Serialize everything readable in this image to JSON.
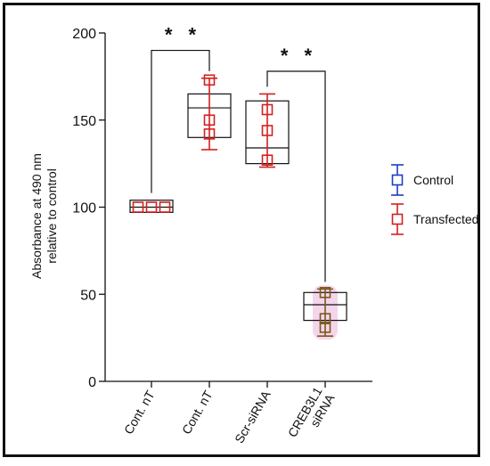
{
  "chart_data": {
    "type": "box",
    "ylabel_lines": [
      "Absorbance at 490 nm",
      "relative to control"
    ],
    "ylim": [
      0,
      200
    ],
    "yticks": [
      0,
      50,
      100,
      150,
      200
    ],
    "categories": [
      {
        "lines": [
          "Cont. nT"
        ]
      },
      {
        "lines": [
          "Cont. nT"
        ]
      },
      {
        "lines": [
          "Scr-siRNA"
        ]
      },
      {
        "lines": [
          "CREB3L1",
          "siRNA"
        ]
      }
    ],
    "boxes": [
      {
        "q1": 97,
        "median": 100,
        "q3": 104,
        "whisker_low": 97,
        "whisker_high": 104,
        "points": [
          100,
          100,
          100
        ],
        "series": "Transfected",
        "highlight": false,
        "show_whiskers": false
      },
      {
        "q1": 140,
        "median": 157,
        "q3": 165,
        "whisker_low": 133,
        "whisker_high": 174,
        "points": [
          173,
          150,
          142
        ],
        "series": "Transfected",
        "highlight": false,
        "show_whiskers": true
      },
      {
        "q1": 125,
        "median": 134,
        "q3": 161,
        "whisker_low": 123,
        "whisker_high": 165,
        "points": [
          156,
          144,
          127
        ],
        "series": "Transfected",
        "highlight": false,
        "show_whiskers": true
      },
      {
        "q1": 35,
        "median": 44,
        "q3": 51,
        "whisker_low": 26,
        "whisker_high": 53,
        "points": [
          51,
          36,
          31
        ],
        "series": "Transfected",
        "highlight": true,
        "show_whiskers": true
      }
    ],
    "significance": [
      {
        "from": 0,
        "to": 1,
        "label": "* *",
        "y": 190
      },
      {
        "from": 2,
        "to": 3,
        "label": "* *",
        "y": 178
      }
    ],
    "legend": {
      "position": "right",
      "entries": [
        {
          "name": "Control",
          "color": "#1f3fbf"
        },
        {
          "name": "Transfected",
          "color": "#d42020"
        }
      ]
    },
    "colors": {
      "transfected": "#d42020",
      "control": "#1f3fbf",
      "highlight_box": "#7a5a1a",
      "highlight_halo": "#f4d6ec",
      "box_stroke": "#111111"
    }
  }
}
